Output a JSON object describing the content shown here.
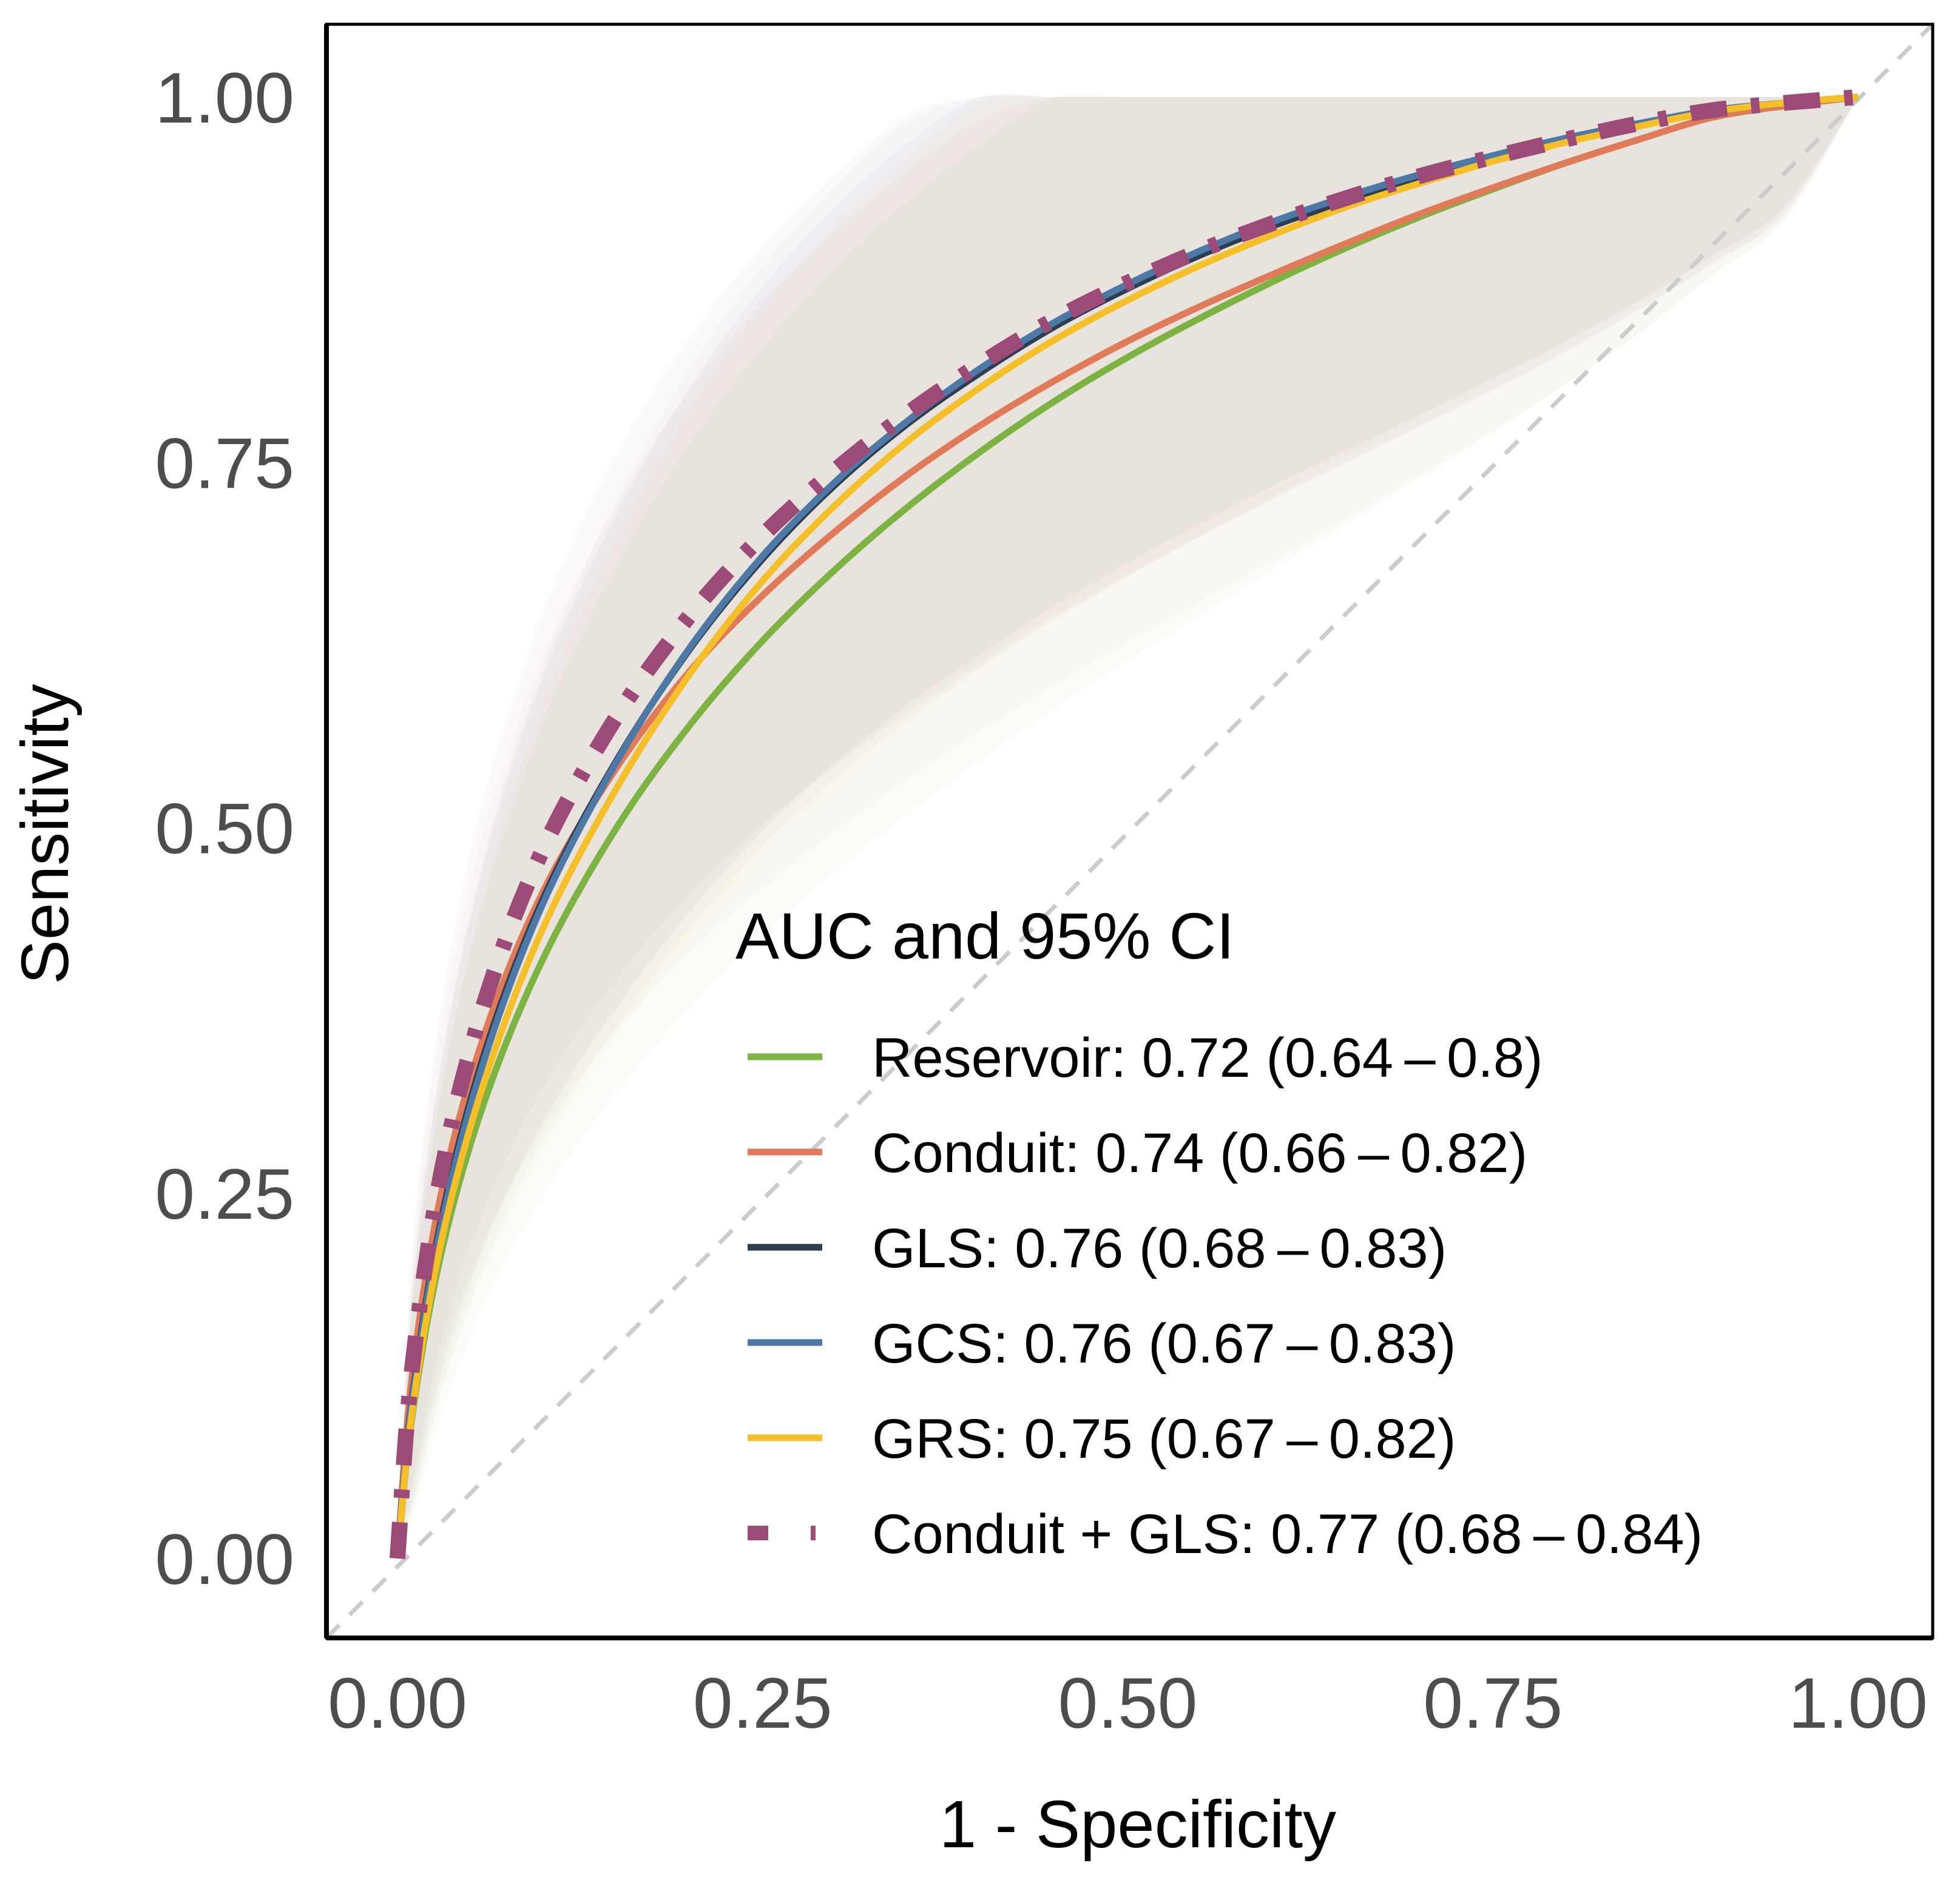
{
  "chart_data": {
    "type": "line",
    "title": "",
    "xlabel": "1 - Specificity",
    "ylabel": "Sensitivity",
    "xlim": [
      0,
      1
    ],
    "ylim": [
      0,
      1
    ],
    "x_ticks": [
      "0.00",
      "0.25",
      "0.50",
      "0.75",
      "1.00"
    ],
    "y_ticks": [
      "0.00",
      "0.25",
      "0.50",
      "0.75",
      "1.00"
    ],
    "x_tick_values": [
      0,
      0.25,
      0.5,
      0.75,
      1
    ],
    "y_tick_values": [
      0,
      0.25,
      0.5,
      0.75,
      1
    ],
    "reference_line": {
      "from": [
        0,
        0
      ],
      "to": [
        1,
        1
      ],
      "style": "dashed",
      "color": "#cccccc"
    },
    "legend": {
      "title": "AUC and 95% CI",
      "position": "bottom-right"
    },
    "series": [
      {
        "name": "Reservoir",
        "label": "Reservoir: 0.72 (0.64 – 0.8)",
        "auc": 0.72,
        "ci": [
          0.64,
          0.8
        ],
        "color": "#7cb342",
        "style": "solid",
        "x": [
          0,
          0.01,
          0.03,
          0.06,
          0.1,
          0.15,
          0.2,
          0.25,
          0.3,
          0.35,
          0.4,
          0.45,
          0.5,
          0.55,
          0.6,
          0.65,
          0.7,
          0.75,
          0.8,
          0.85,
          0.9,
          0.95,
          1
        ],
        "y": [
          0,
          0.097,
          0.209,
          0.314,
          0.411,
          0.5,
          0.57,
          0.628,
          0.677,
          0.72,
          0.758,
          0.792,
          0.822,
          0.849,
          0.874,
          0.897,
          0.918,
          0.937,
          0.955,
          0.971,
          0.986,
          0.994,
          1
        ]
      },
      {
        "name": "Conduit",
        "label": "Conduit: 0.74 (0.66 – 0.82)",
        "auc": 0.74,
        "ci": [
          0.66,
          0.82
        ],
        "color": "#e07b5a",
        "style": "solid",
        "x": [
          0,
          0.01,
          0.03,
          0.06,
          0.1,
          0.15,
          0.2,
          0.25,
          0.3,
          0.35,
          0.4,
          0.45,
          0.5,
          0.55,
          0.6,
          0.65,
          0.7,
          0.75,
          0.8,
          0.85,
          0.9,
          0.95,
          1
        ],
        "y": [
          0,
          0.125,
          0.25,
          0.36,
          0.457,
          0.541,
          0.607,
          0.659,
          0.703,
          0.742,
          0.776,
          0.806,
          0.833,
          0.857,
          0.879,
          0.9,
          0.92,
          0.938,
          0.955,
          0.971,
          0.986,
          0.994,
          1
        ]
      },
      {
        "name": "GLS",
        "label": "GLS: 0.76 (0.68 – 0.83)",
        "auc": 0.76,
        "ci": [
          0.68,
          0.83
        ],
        "color": "#2c3e50",
        "style": "solid",
        "x": [
          0,
          0.01,
          0.03,
          0.06,
          0.1,
          0.15,
          0.2,
          0.25,
          0.3,
          0.35,
          0.4,
          0.45,
          0.5,
          0.55,
          0.6,
          0.65,
          0.7,
          0.75,
          0.8,
          0.85,
          0.9,
          0.95,
          1
        ],
        "y": [
          0,
          0.11,
          0.232,
          0.347,
          0.452,
          0.546,
          0.622,
          0.684,
          0.735,
          0.777,
          0.812,
          0.843,
          0.869,
          0.892,
          0.912,
          0.929,
          0.944,
          0.958,
          0.97,
          0.981,
          0.99,
          0.996,
          1
        ]
      },
      {
        "name": "GCS",
        "label": "GCS: 0.76 (0.67 – 0.83)",
        "auc": 0.76,
        "ci": [
          0.67,
          0.83
        ],
        "color": "#4e79a7",
        "style": "solid",
        "x": [
          0,
          0.01,
          0.03,
          0.06,
          0.1,
          0.15,
          0.2,
          0.25,
          0.3,
          0.35,
          0.4,
          0.45,
          0.5,
          0.55,
          0.6,
          0.65,
          0.7,
          0.75,
          0.8,
          0.85,
          0.9,
          0.95,
          1
        ],
        "y": [
          0,
          0.108,
          0.228,
          0.343,
          0.449,
          0.545,
          0.623,
          0.686,
          0.737,
          0.779,
          0.815,
          0.846,
          0.872,
          0.895,
          0.915,
          0.932,
          0.947,
          0.96,
          0.972,
          0.982,
          0.991,
          0.996,
          1
        ]
      },
      {
        "name": "GRS",
        "label": "GRS: 0.75 (0.67 – 0.82)",
        "auc": 0.75,
        "ci": [
          0.67,
          0.82
        ],
        "color": "#f5bf2a",
        "style": "solid",
        "x": [
          0,
          0.01,
          0.03,
          0.06,
          0.1,
          0.15,
          0.2,
          0.25,
          0.3,
          0.35,
          0.4,
          0.45,
          0.5,
          0.55,
          0.6,
          0.65,
          0.7,
          0.75,
          0.8,
          0.85,
          0.9,
          0.95,
          1
        ],
        "y": [
          0,
          0.1,
          0.217,
          0.328,
          0.432,
          0.527,
          0.605,
          0.669,
          0.721,
          0.765,
          0.802,
          0.834,
          0.861,
          0.885,
          0.906,
          0.925,
          0.941,
          0.956,
          0.969,
          0.98,
          0.99,
          0.996,
          1
        ]
      },
      {
        "name": "Conduit + GLS",
        "label": "Conduit + GLS: 0.77 (0.68 – 0.84)",
        "auc": 0.77,
        "ci": [
          0.68,
          0.84
        ],
        "color": "#9c4a78",
        "style": "dashdot",
        "x": [
          0,
          0.01,
          0.03,
          0.06,
          0.1,
          0.15,
          0.2,
          0.25,
          0.3,
          0.35,
          0.4,
          0.45,
          0.5,
          0.55,
          0.6,
          0.65,
          0.7,
          0.75,
          0.8,
          0.85,
          0.9,
          0.95,
          1
        ],
        "y": [
          0,
          0.13,
          0.264,
          0.382,
          0.486,
          0.576,
          0.645,
          0.7,
          0.745,
          0.784,
          0.818,
          0.848,
          0.873,
          0.895,
          0.914,
          0.931,
          0.946,
          0.959,
          0.971,
          0.982,
          0.991,
          0.996,
          1
        ]
      }
    ]
  }
}
